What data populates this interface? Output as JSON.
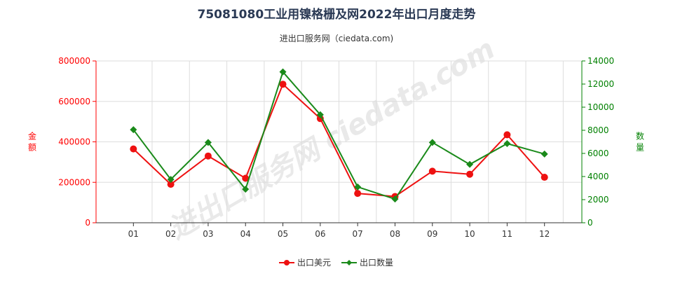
{
  "chart_data": {
    "type": "line",
    "title": "75081080工业用镍格栅及网2022年出口月度走势",
    "subtitle": "进出口服务网（ciedata.com)",
    "watermark": "进出口服务网 ciedata.com",
    "categories": [
      "01",
      "02",
      "03",
      "04",
      "05",
      "06",
      "07",
      "08",
      "09",
      "10",
      "11",
      "12"
    ],
    "y_left": {
      "label": "金额",
      "ylim": [
        0,
        800000
      ],
      "ticks": [
        "0",
        "200000",
        "400000",
        "600000",
        "800000"
      ],
      "color": "#ff0000"
    },
    "y_right": {
      "label": "数量",
      "ylim": [
        0,
        14000
      ],
      "ticks": [
        "0",
        "2000",
        "4000",
        "6000",
        "8000",
        "10000",
        "12000",
        "14000"
      ],
      "color": "#008000"
    },
    "series": [
      {
        "name": "出口美元",
        "axis": "left",
        "color": "#ee1111",
        "values": [
          365000,
          190000,
          330000,
          220000,
          685000,
          515000,
          145000,
          130000,
          255000,
          240000,
          435000,
          225000
        ]
      },
      {
        "name": "出口数量",
        "axis": "right",
        "color": "#1a8a1a",
        "values": [
          8050,
          3750,
          6950,
          2900,
          13050,
          9350,
          3100,
          2050,
          6950,
          5050,
          6850,
          5950
        ]
      }
    ],
    "grid": true,
    "legend": "bottom-center"
  }
}
